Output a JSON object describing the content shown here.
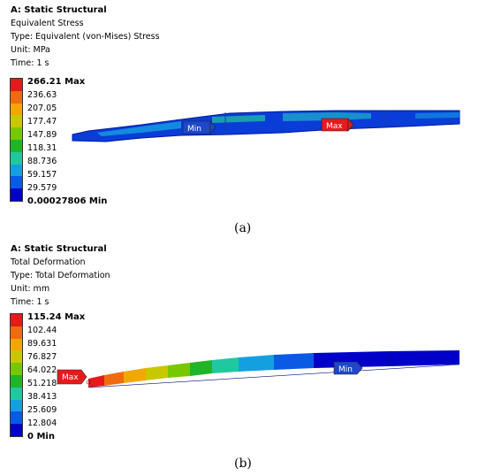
{
  "panel_a": {
    "header": {
      "title": "A: Static Structural",
      "result": "Equivalent Stress",
      "type": "Type: Equivalent (von-Mises) Stress",
      "unit": "Unit: MPa",
      "time": "Time: 1 s"
    },
    "legend": [
      "266.21 Max",
      "236.63",
      "207.05",
      "177.47",
      "147.89",
      "118.31",
      "88.736",
      "59.157",
      "29.579",
      "0.00027806 Min"
    ],
    "probe_min": "Min",
    "probe_max": "Max",
    "caption": "(a)"
  },
  "panel_b": {
    "header": {
      "title": "A: Static Structural",
      "result": "Total Deformation",
      "type": "Type: Total Deformation",
      "unit": "Unit: mm",
      "time": "Time: 1 s"
    },
    "legend": [
      "115.24 Max",
      "102.44",
      "89.631",
      "76.827",
      "64.022",
      "51.218",
      "38.413",
      "25.609",
      "12.804",
      "0 Min"
    ],
    "probe_max": "Max",
    "probe_min": "Min",
    "caption": "(b)"
  },
  "colors": {
    "scale": [
      "#e41a1c",
      "#f06a10",
      "#f0a800",
      "#c8c800",
      "#78c800",
      "#20b428",
      "#20c8a0",
      "#14a0e0",
      "#0a5ae6",
      "#0000c8"
    ]
  }
}
